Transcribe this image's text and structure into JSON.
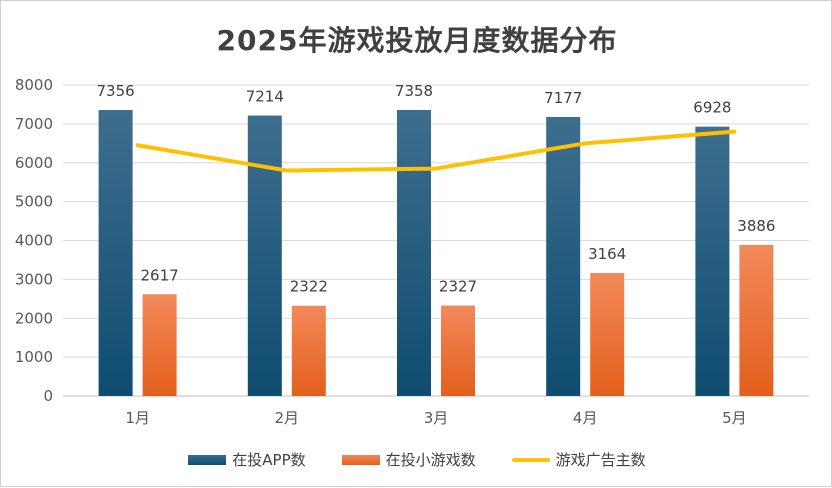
{
  "chart_data": {
    "type": "bar",
    "title": "2025年游戏投放月度数据分布",
    "categories": [
      "1月",
      "2月",
      "3月",
      "4月",
      "5月"
    ],
    "ylim": [
      0,
      8000
    ],
    "yticks": [
      "8000",
      "7000",
      "6000",
      "5000",
      "4000",
      "3000",
      "2000",
      "1000",
      "0"
    ],
    "grid": true,
    "legend_position": "bottom",
    "series": [
      {
        "name": "在投APP数",
        "kind": "bar",
        "color": "#1F5A7F",
        "values": [
          7356,
          7214,
          7358,
          7177,
          6928
        ],
        "labels": [
          "7356",
          "7214",
          "7358",
          "7177",
          "6928"
        ]
      },
      {
        "name": "在投小游戏数",
        "kind": "bar",
        "color": "#EB6E2E",
        "values": [
          2617,
          2322,
          2327,
          3164,
          3886
        ],
        "labels": [
          "2617",
          "2322",
          "2327",
          "3164",
          "3886"
        ]
      },
      {
        "name": "游戏广告主数",
        "kind": "line",
        "color": "#FFC000",
        "values": [
          6450,
          5800,
          5850,
          6500,
          6800
        ]
      }
    ]
  }
}
